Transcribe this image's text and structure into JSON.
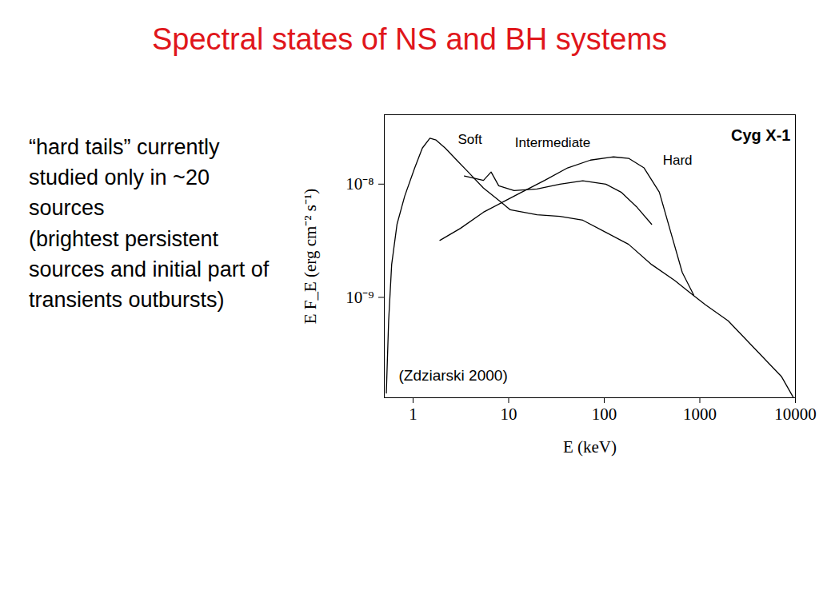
{
  "page": {
    "title": "Spectral states of NS and BH systems",
    "text": [
      "“hard tails” currently studied only in ~20 sources",
      "(brightest persistent sources and initial part of transients outbursts)"
    ]
  },
  "chart_data": {
    "type": "line",
    "x_label": "E (keV)",
    "y_label": "E F_E (erg cm⁻² s⁻¹)",
    "annotations": [
      "Cyg X-1",
      "(Zdziarski 2000)"
    ],
    "log": true,
    "grid": false,
    "xlim": [
      0.5,
      10000
    ],
    "xticks": [
      1,
      10,
      100,
      1000,
      10000
    ],
    "ylim": [
      1.3e-10,
      4.1e-08
    ],
    "yticks": [
      {
        "value": 1e-08,
        "label": "10⁻⁸"
      },
      {
        "value": 1e-09,
        "label": "10⁻⁹"
      }
    ],
    "series": [
      {
        "name": "Soft",
        "color": "#000000",
        "x": [
          0.525,
          0.555,
          0.597,
          0.679,
          0.817,
          1.04,
          1.25,
          1.5,
          1.74,
          2.17,
          2.86,
          3.77,
          5.45,
          7.87,
          10.4,
          19.8,
          34.4,
          59.7,
          104,
          180,
          313,
          545,
          787,
          1138,
          1977,
          3436,
          7178,
          9462
        ],
        "values": [
          1.43e-10,
          6.22e-10,
          1.95e-09,
          4.42e-09,
          7.83e-09,
          1.39e-08,
          2.08e-08,
          2.54e-08,
          2.45e-08,
          2.08e-08,
          1.63e-08,
          1.28e-08,
          9.22e-09,
          7.21e-09,
          5.93e-09,
          5.37e-09,
          5.2e-09,
          4.8e-09,
          3.75e-09,
          2.94e-09,
          1.95e-09,
          1.41e-09,
          1.1e-09,
          8.63e-10,
          6.22e-10,
          3.82e-10,
          1.99e-10,
          1.32e-10
        ]
      },
      {
        "name": "Intermediate",
        "color": "#000000",
        "x": [
          3.44,
          5.45,
          6.55,
          7.87,
          11.4,
          19.8,
          34.4,
          59.7,
          104,
          150,
          217,
          313
        ],
        "values": [
          1.18e-08,
          1.08e-08,
          1.28e-08,
          9.68e-09,
          8.77e-09,
          9.06e-09,
          1e-08,
          1.07e-08,
          1e-08,
          8.5e-09,
          6.33e-09,
          4.42e-09
        ]
      },
      {
        "name": "Hard",
        "color": "#000000",
        "x": [
          1.91,
          3.13,
          5.45,
          9.46,
          13.7,
          23.8,
          41.3,
          71.8,
          125,
          180,
          261,
          377,
          497,
          655,
          863
        ],
        "values": [
          3.19e-09,
          4.07e-09,
          5.65e-09,
          7.21e-09,
          8.5e-09,
          1.08e-08,
          1.39e-08,
          1.63e-08,
          1.74e-08,
          1.69e-08,
          1.39e-08,
          8.5e-09,
          3.75e-09,
          1.66e-09,
          1.05e-09
        ]
      }
    ]
  }
}
